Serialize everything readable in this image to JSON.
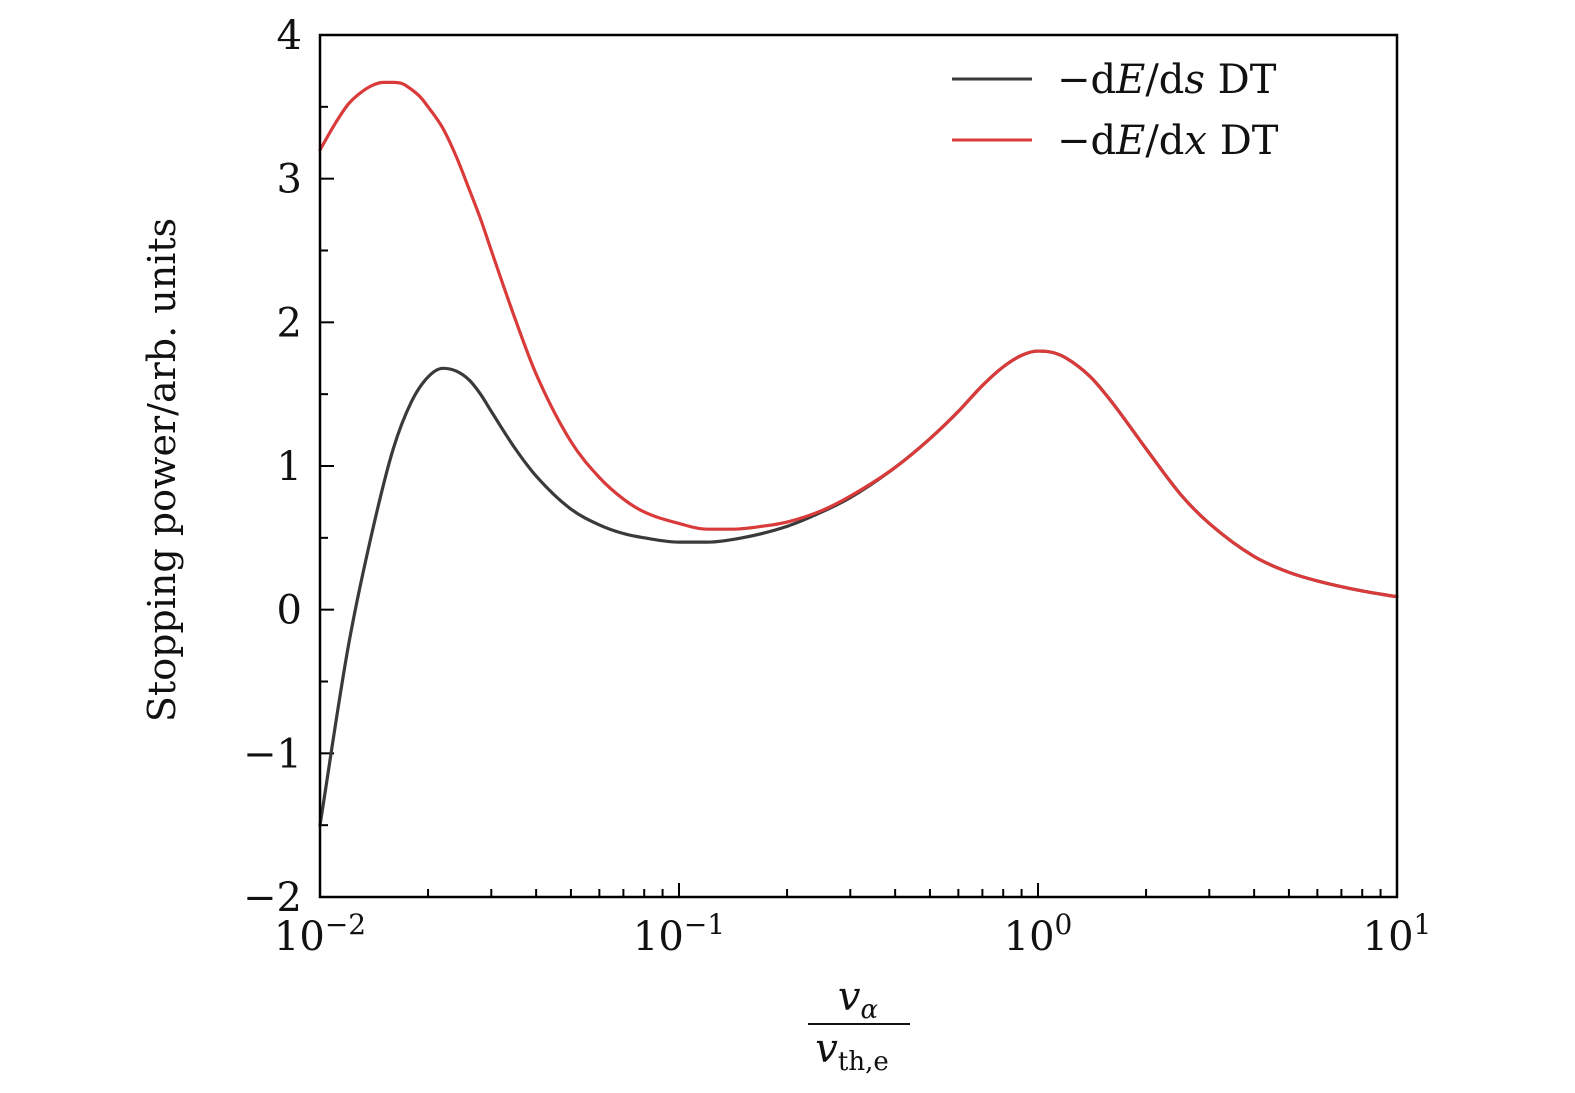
{
  "chart_data": {
    "type": "line",
    "title": "",
    "xlabel": {
      "numerator": "v",
      "numerator_sub": "α",
      "denominator": "v",
      "denominator_sub": "th,e"
    },
    "ylabel": "Stopping power/arb. units",
    "x_scale": "log",
    "xlim": [
      0.01,
      10
    ],
    "ylim": [
      -2,
      4
    ],
    "x_ticks": [
      {
        "value": 0.01,
        "base": "10",
        "exp": "−2"
      },
      {
        "value": 0.1,
        "base": "10",
        "exp": "−1"
      },
      {
        "value": 1,
        "base": "10",
        "exp": "0"
      },
      {
        "value": 10,
        "base": "10",
        "exp": "1"
      }
    ],
    "y_ticks": [
      {
        "value": -2,
        "label": "−2"
      },
      {
        "value": -1,
        "label": "−1"
      },
      {
        "value": 0,
        "label": "0"
      },
      {
        "value": 1,
        "label": "1"
      },
      {
        "value": 2,
        "label": "2"
      },
      {
        "value": 3,
        "label": "3"
      },
      {
        "value": 4,
        "label": "4"
      }
    ],
    "grid": false,
    "legend_position": "top-right",
    "series": [
      {
        "name": "−dE/ds DT",
        "legend": {
          "prefix": "−d",
          "var1": "E",
          "mid": "/d",
          "var2": "s",
          "suffix": " DT"
        },
        "color": "#3a3a3a",
        "x": [
          0.01,
          0.012,
          0.014,
          0.016,
          0.018,
          0.02,
          0.022,
          0.024,
          0.026,
          0.028,
          0.03,
          0.035,
          0.04,
          0.05,
          0.06,
          0.07,
          0.08,
          0.1,
          0.12,
          0.15,
          0.2,
          0.25,
          0.3,
          0.4,
          0.5,
          0.6,
          0.7,
          0.8,
          0.9,
          1.0,
          1.1,
          1.2,
          1.4,
          1.6,
          2.0,
          2.5,
          3.0,
          4.0,
          5.0,
          6.0,
          8.0,
          10.0
        ],
        "y": [
          -1.5,
          -0.25,
          0.55,
          1.12,
          1.45,
          1.62,
          1.68,
          1.66,
          1.6,
          1.5,
          1.38,
          1.12,
          0.93,
          0.7,
          0.59,
          0.53,
          0.5,
          0.47,
          0.47,
          0.5,
          0.58,
          0.68,
          0.78,
          0.99,
          1.19,
          1.38,
          1.56,
          1.69,
          1.77,
          1.8,
          1.79,
          1.75,
          1.62,
          1.45,
          1.12,
          0.8,
          0.6,
          0.37,
          0.26,
          0.2,
          0.13,
          0.09
        ]
      },
      {
        "name": "−dE/dx DT",
        "legend": {
          "prefix": "−d",
          "var1": "E",
          "mid": "/d",
          "var2": "x",
          "suffix": " DT"
        },
        "color": "#d93a3a",
        "x": [
          0.01,
          0.011,
          0.012,
          0.013,
          0.014,
          0.015,
          0.016,
          0.017,
          0.018,
          0.019,
          0.02,
          0.022,
          0.024,
          0.026,
          0.028,
          0.03,
          0.035,
          0.04,
          0.05,
          0.06,
          0.07,
          0.08,
          0.1,
          0.12,
          0.14,
          0.17,
          0.2,
          0.25,
          0.3,
          0.4,
          0.5,
          0.6,
          0.7,
          0.8,
          0.9,
          1.0,
          1.1,
          1.2,
          1.4,
          1.6,
          2.0,
          2.5,
          3.0,
          4.0,
          5.0,
          6.0,
          8.0,
          10.0
        ],
        "y": [
          3.2,
          3.38,
          3.52,
          3.6,
          3.65,
          3.67,
          3.67,
          3.66,
          3.62,
          3.57,
          3.5,
          3.35,
          3.15,
          2.93,
          2.72,
          2.5,
          2.02,
          1.64,
          1.17,
          0.92,
          0.77,
          0.68,
          0.6,
          0.56,
          0.56,
          0.58,
          0.61,
          0.69,
          0.79,
          0.99,
          1.19,
          1.38,
          1.56,
          1.69,
          1.77,
          1.8,
          1.79,
          1.75,
          1.62,
          1.45,
          1.12,
          0.8,
          0.6,
          0.37,
          0.26,
          0.2,
          0.13,
          0.09
        ]
      }
    ]
  }
}
